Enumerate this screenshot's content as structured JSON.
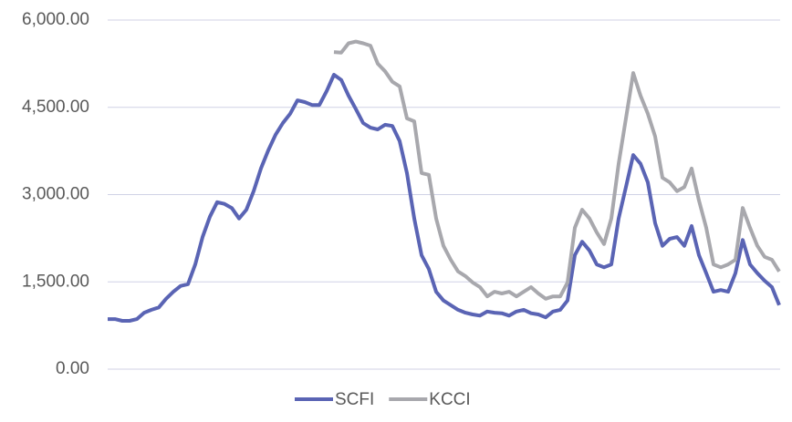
{
  "chart_data": {
    "type": "line",
    "ylim": [
      0,
      6000
    ],
    "yticks": [
      {
        "value": 0,
        "label": "0.00"
      },
      {
        "value": 1500,
        "label": "1,500.00"
      },
      {
        "value": 3000,
        "label": "3,000.00"
      },
      {
        "value": 4500,
        "label": "4,500.00"
      },
      {
        "value": 6000,
        "label": "6,000.00"
      }
    ],
    "grid": true,
    "legend": "bottom",
    "series": [
      {
        "name": "SCFI",
        "color": "#5a64b4",
        "values": [
          860,
          860,
          830,
          830,
          860,
          970,
          1020,
          1060,
          1210,
          1330,
          1430,
          1460,
          1800,
          2270,
          2620,
          2870,
          2840,
          2770,
          2590,
          2740,
          3060,
          3450,
          3760,
          4030,
          4230,
          4390,
          4620,
          4590,
          4540,
          4540,
          4780,
          5060,
          4970,
          4700,
          4470,
          4230,
          4150,
          4120,
          4200,
          4180,
          3920,
          3370,
          2590,
          1960,
          1720,
          1330,
          1180,
          1100,
          1020,
          970,
          940,
          920,
          990,
          970,
          960,
          920,
          990,
          1020,
          960,
          940,
          890,
          990,
          1020,
          1180,
          1960,
          2190,
          2040,
          1800,
          1750,
          1800,
          2590,
          3130,
          3680,
          3530,
          3210,
          2510,
          2120,
          2240,
          2270,
          2120,
          2460,
          1960,
          1650,
          1330,
          1360,
          1330,
          1650,
          2220,
          1800,
          1650,
          1520,
          1410,
          1100
        ]
      },
      {
        "name": "KCCI",
        "color": "#a8a8ad",
        "values": [
          null,
          null,
          null,
          null,
          null,
          null,
          null,
          null,
          null,
          null,
          null,
          null,
          null,
          null,
          null,
          null,
          null,
          null,
          null,
          null,
          null,
          null,
          null,
          null,
          null,
          null,
          null,
          null,
          null,
          null,
          null,
          5450,
          5440,
          5600,
          5630,
          5600,
          5560,
          5250,
          5120,
          4940,
          4860,
          4310,
          4260,
          3370,
          3340,
          2590,
          2120,
          1880,
          1680,
          1600,
          1490,
          1410,
          1250,
          1330,
          1300,
          1330,
          1250,
          1330,
          1410,
          1300,
          1210,
          1250,
          1250,
          1490,
          2430,
          2740,
          2590,
          2350,
          2150,
          2590,
          3530,
          4310,
          5090,
          4700,
          4390,
          4000,
          3290,
          3210,
          3060,
          3130,
          3450,
          2900,
          2430,
          1800,
          1750,
          1800,
          1880,
          2770,
          2430,
          2120,
          1930,
          1880,
          1680
        ]
      }
    ]
  }
}
